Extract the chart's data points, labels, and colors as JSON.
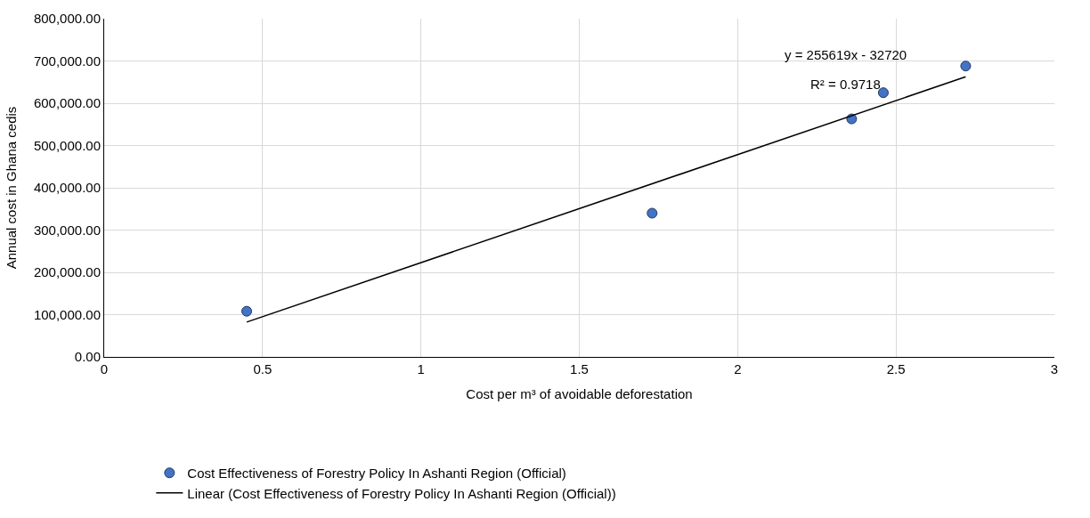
{
  "chart_data": {
    "type": "scatter",
    "xlabel": "Cost per m³ of avoidable deforestation",
    "ylabel": "Annual cost in Ghana cedis",
    "x": [
      0.45,
      1.73,
      2.36,
      2.46,
      2.72
    ],
    "series": [
      {
        "name": "Cost Effectiveness of Forestry Policy In Ashanti Region (Official)",
        "color": "#4472c4",
        "values": [
          108000,
          340000,
          563000,
          625000,
          688000
        ],
        "marker": "circle"
      },
      {
        "name": "Linear (Cost Effectiveness of Forestry Policy In Ashanti Region (Official))",
        "type": "line",
        "color": "#000000",
        "x": [
          0.45,
          2.72
        ],
        "values": [
          82308,
          662564
        ],
        "marker": "none",
        "line_style": "solid"
      }
    ],
    "xlim": [
      0,
      3
    ],
    "xticks": [
      0,
      0.5,
      1,
      1.5,
      2,
      2.5,
      3
    ],
    "ylim": [
      0,
      800000
    ],
    "yticks": [
      {
        "value": 0,
        "label": "0.00"
      },
      {
        "value": 100000,
        "label": "100,000.00"
      },
      {
        "value": 200000,
        "label": "200,000.00"
      },
      {
        "value": 300000,
        "label": "300,000.00"
      },
      {
        "value": 400000,
        "label": "400,000.00"
      },
      {
        "value": 500000,
        "label": "500,000.00"
      },
      {
        "value": 600000,
        "label": "600,000.00"
      },
      {
        "value": 700000,
        "label": "700,000.00"
      },
      {
        "value": 800000,
        "label": "800,000.00"
      }
    ],
    "annotations": [
      "y = 255619x - 32720",
      "R² = 0.9718"
    ],
    "grid": true,
    "legend": "bottom"
  }
}
